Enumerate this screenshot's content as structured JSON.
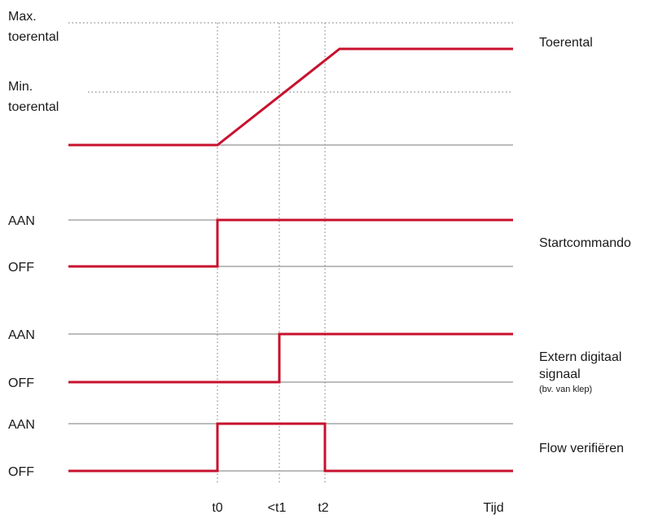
{
  "colors": {
    "signal": "#c8102e",
    "baseline": "#a6a6a6",
    "guide": "#8c8c8c",
    "text": "#1a1a1a"
  },
  "speed": {
    "max_label_line1": "Max.",
    "max_label_line2": "toerental",
    "min_label_line1": "Min.",
    "min_label_line2": "toerental",
    "name": "Toerental"
  },
  "start_command": {
    "on_label": "AAN",
    "off_label": "OFF",
    "name": "Startcommando"
  },
  "external_signal": {
    "on_label": "AAN",
    "off_label": "OFF",
    "name_line1": "Extern digitaal",
    "name_line2": "signaal",
    "note": "(bv. van klep)"
  },
  "flow_verify": {
    "on_label": "AAN",
    "off_label": "OFF",
    "name": "Flow verifiëren"
  },
  "time_axis": {
    "t0": "t0",
    "t1": "<t1",
    "t2": "t2",
    "label": "Tijd"
  }
}
